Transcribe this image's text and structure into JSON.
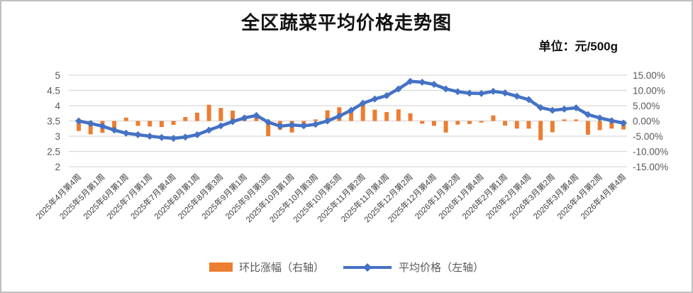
{
  "title": "全区蔬菜平均价格走势图",
  "unit_label": "单位：元/500g",
  "legend": {
    "bar_label": "环比涨幅（右轴）",
    "line_label": "平均价格（左轴）"
  },
  "colors": {
    "bar": "#ED7D31",
    "line": "#4472C4",
    "gridline": "#D9D9D9",
    "axis_text": "#595959",
    "x_label_text": "#404040"
  },
  "chart_data": {
    "type": "combo-bar-line",
    "title": "全区蔬菜平均价格走势图",
    "unit": "元/500g",
    "grid": "horizontal",
    "legend_position": "bottom",
    "n_points": 47,
    "x_tick_every": 2,
    "x_tick_labels": [
      "2025年4月第4周",
      "2025年5月第1周",
      "2025年6月第1周",
      "2025年7月第1周",
      "2025年7月第4周",
      "2025年8月第1周",
      "2025年8月第3周",
      "2025年9月第1周",
      "2025年9月第3周",
      "2025年10月第1周",
      "2025年10月第3周",
      "2025年10月第5周",
      "2025年11月第2周",
      "2025年11月第4周",
      "2025年12月第2周",
      "2025年12月第4周",
      "2026年1月第2周",
      "2026年1月第4周",
      "2026年2月第1周",
      "2026年2月第4周",
      "2026年3月第2周",
      "2026年3月第4周",
      "2026年4月第2周",
      "2026年4月第4周"
    ],
    "left_axis": {
      "min": 2,
      "max": 5,
      "step": 0.5,
      "ticks": [
        "5",
        "4.5",
        "4",
        "3.5",
        "3",
        "2.5",
        "2"
      ]
    },
    "right_axis": {
      "min": -15,
      "max": 15,
      "step": 5,
      "ticks": [
        "15.00%",
        "10.00%",
        "5.00%",
        "0.00%",
        "-5.00%",
        "-10.00%",
        "-15.00%"
      ]
    },
    "series": [
      {
        "name": "平均价格（左轴）",
        "type": "line",
        "axis": "left",
        "color": "#4472C4",
        "values": [
          3.5,
          3.42,
          3.33,
          3.2,
          3.1,
          3.05,
          3.0,
          2.96,
          2.93,
          2.97,
          3.05,
          3.2,
          3.34,
          3.48,
          3.6,
          3.68,
          3.46,
          3.33,
          3.37,
          3.34,
          3.39,
          3.5,
          3.66,
          3.85,
          4.08,
          4.22,
          4.33,
          4.55,
          4.8,
          4.77,
          4.7,
          4.55,
          4.46,
          4.41,
          4.4,
          4.47,
          4.42,
          4.31,
          4.2,
          3.94,
          3.85,
          3.89,
          3.93,
          3.71,
          3.6,
          3.51,
          3.43
        ]
      },
      {
        "name": "环比涨幅（右轴）",
        "type": "bar",
        "axis": "right",
        "color": "#ED7D31",
        "values": [
          -3.3,
          -4.4,
          -3.9,
          -3.0,
          1.1,
          -1.6,
          -1.8,
          -2.0,
          -1.3,
          1.3,
          2.7,
          5.3,
          4.3,
          3.4,
          1.7,
          1.1,
          -5.0,
          -2.9,
          -3.8,
          -1.8,
          0.5,
          3.5,
          4.5,
          3.8,
          6.2,
          3.7,
          2.9,
          3.8,
          2.5,
          -0.9,
          -1.6,
          -3.8,
          -1.2,
          -1.0,
          -0.5,
          1.8,
          -1.5,
          -2.5,
          -2.5,
          -6.3,
          -3.7,
          0.5,
          0.5,
          -4.5,
          -3.0,
          -2.5,
          -2.8
        ]
      }
    ]
  }
}
